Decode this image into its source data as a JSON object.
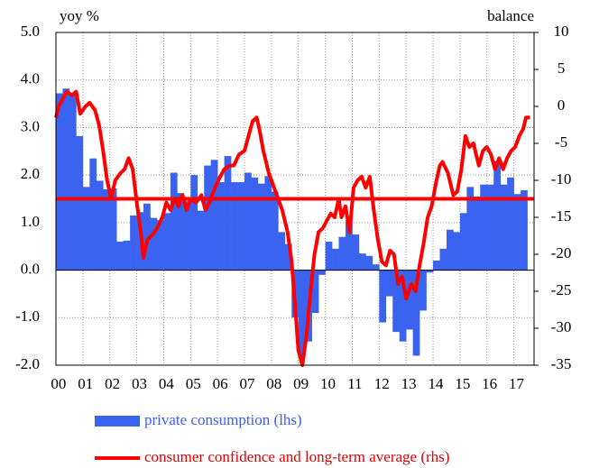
{
  "chart_data": {
    "type": "bar-line",
    "y_label": "yoy %",
    "y2_label": "balance",
    "xlim": [
      2000,
      2017.75
    ],
    "xticks": [
      {
        "value": 2000,
        "label": "00"
      },
      {
        "value": 2001,
        "label": "01"
      },
      {
        "value": 2002,
        "label": "02"
      },
      {
        "value": 2003,
        "label": "03"
      },
      {
        "value": 2004,
        "label": "04"
      },
      {
        "value": 2005,
        "label": "05"
      },
      {
        "value": 2006,
        "label": "06"
      },
      {
        "value": 2007,
        "label": "07"
      },
      {
        "value": 2008,
        "label": "08"
      },
      {
        "value": 2009,
        "label": "09"
      },
      {
        "value": 2010,
        "label": "10"
      },
      {
        "value": 2011,
        "label": "11"
      },
      {
        "value": 2012,
        "label": "12"
      },
      {
        "value": 2013,
        "label": "13"
      },
      {
        "value": 2014,
        "label": "14"
      },
      {
        "value": 2015,
        "label": "15"
      },
      {
        "value": 2016,
        "label": "16"
      },
      {
        "value": 2017,
        "label": "17"
      }
    ],
    "ylim": [
      -2,
      5
    ],
    "yticks": [
      {
        "value": -2,
        "label": "-2.0"
      },
      {
        "value": -1,
        "label": "-1.0"
      },
      {
        "value": 0,
        "label": "0.0"
      },
      {
        "value": 1,
        "label": "1.0"
      },
      {
        "value": 2,
        "label": "2.0"
      },
      {
        "value": 3,
        "label": "3.0"
      },
      {
        "value": 4,
        "label": "4.0"
      },
      {
        "value": 5,
        "label": "5.0"
      }
    ],
    "y2lim": [
      -35,
      10
    ],
    "y2ticks": [
      -35,
      -30,
      -25,
      -20,
      -15,
      -10,
      -5,
      0,
      5,
      10
    ],
    "grid": true,
    "series": [
      {
        "name": "private consumption (lhs)",
        "type": "bar",
        "color": "#3a63f0",
        "width": 0.25,
        "x": [
          2000,
          2000.25,
          2000.5,
          2000.75,
          2001,
          2001.25,
          2001.5,
          2001.75,
          2002,
          2002.25,
          2002.5,
          2002.75,
          2003,
          2003.25,
          2003.5,
          2003.75,
          2004,
          2004.25,
          2004.5,
          2004.75,
          2005,
          2005.25,
          2005.5,
          2005.75,
          2006,
          2006.25,
          2006.5,
          2006.75,
          2007,
          2007.25,
          2007.5,
          2007.75,
          2008,
          2008.25,
          2008.5,
          2008.75,
          2009,
          2009.25,
          2009.5,
          2009.75,
          2010,
          2010.25,
          2010.5,
          2010.75,
          2011,
          2011.25,
          2011.5,
          2011.75,
          2012,
          2012.25,
          2012.5,
          2012.75,
          2013,
          2013.25,
          2013.5,
          2013.75,
          2014,
          2014.25,
          2014.5,
          2014.75,
          2015,
          2015.25,
          2015.5,
          2015.75,
          2016,
          2016.25,
          2016.5,
          2016.75,
          2017,
          2017.25
        ],
        "values": [
          3.72,
          3.82,
          3.7,
          2.82,
          1.75,
          2.35,
          1.88,
          1.7,
          1.72,
          0.6,
          0.62,
          1.15,
          1.22,
          1.4,
          1.1,
          1.05,
          1.2,
          2.05,
          1.62,
          1.45,
          2.0,
          1.25,
          2.2,
          2.32,
          1.85,
          2.4,
          1.85,
          1.85,
          2.05,
          1.95,
          1.82,
          1.98,
          1.65,
          0.8,
          0.55,
          -1.0,
          -1.85,
          -1.5,
          -0.9,
          -0.1,
          0.6,
          0.45,
          0.7,
          1.05,
          0.75,
          0.35,
          0.3,
          0.12,
          -1.1,
          -0.55,
          -1.3,
          -1.5,
          -1.25,
          -1.8,
          -0.85,
          -0.05,
          0.2,
          0.45,
          0.85,
          0.8,
          1.2,
          1.75,
          1.55,
          1.8,
          1.8,
          2.3,
          1.8,
          1.95,
          1.6,
          1.68
        ]
      },
      {
        "name": "consumer confidence and long-term average (rhs)",
        "type": "line",
        "axis": "y2",
        "color": "#ff0000",
        "average": -12.5,
        "x": [
          2000.0,
          2000.1,
          2000.25,
          2000.4,
          2000.6,
          2000.75,
          2000.9,
          2001.1,
          2001.25,
          2001.45,
          2001.6,
          2001.75,
          2001.9,
          2002.05,
          2002.2,
          2002.4,
          2002.55,
          2002.7,
          2002.85,
          2003.0,
          2003.15,
          2003.25,
          2003.4,
          2003.55,
          2003.75,
          2003.95,
          2004.1,
          2004.25,
          2004.4,
          2004.55,
          2004.7,
          2004.85,
          2005.0,
          2005.2,
          2005.4,
          2005.55,
          2005.7,
          2005.9,
          2006.1,
          2006.25,
          2006.45,
          2006.6,
          2006.8,
          2007.0,
          2007.15,
          2007.3,
          2007.45,
          2007.55,
          2007.7,
          2007.9,
          2008.05,
          2008.2,
          2008.4,
          2008.6,
          2008.75,
          2008.9,
          2009.0,
          2009.15,
          2009.3,
          2009.45,
          2009.6,
          2009.75,
          2009.9,
          2010.05,
          2010.2,
          2010.35,
          2010.5,
          2010.6,
          2010.75,
          2010.9,
          2011.05,
          2011.2,
          2011.35,
          2011.5,
          2011.65,
          2011.8,
          2011.95,
          2012.1,
          2012.25,
          2012.4,
          2012.55,
          2012.7,
          2012.85,
          2013.0,
          2013.2,
          2013.35,
          2013.5,
          2013.65,
          2013.8,
          2013.95,
          2014.1,
          2014.25,
          2014.35,
          2014.55,
          2014.75,
          2014.9,
          2015.05,
          2015.2,
          2015.35,
          2015.5,
          2015.7,
          2015.85,
          2016.0,
          2016.15,
          2016.3,
          2016.45,
          2016.6,
          2016.75,
          2016.9,
          2017.05,
          2017.2,
          2017.35,
          2017.45,
          2017.6
        ],
        "values": [
          -1.5,
          0,
          1,
          2,
          1.5,
          2,
          -1,
          0,
          0.5,
          -0.5,
          -2.5,
          -6,
          -10,
          -12.5,
          -10,
          -9,
          -8.5,
          -7,
          -8.5,
          -13,
          -17,
          -20.5,
          -18,
          -17.5,
          -16.5,
          -15,
          -13,
          -14,
          -12.5,
          -13.5,
          -12,
          -14,
          -12.5,
          -13,
          -12,
          -14,
          -13,
          -11,
          -9.5,
          -8.5,
          -8,
          -8,
          -6.5,
          -6,
          -4,
          -2,
          -1.5,
          -3,
          -6,
          -9,
          -10.5,
          -12,
          -14,
          -17,
          -21,
          -28,
          -33,
          -35,
          -31,
          -25,
          -20,
          -17,
          -16.5,
          -15.5,
          -14.5,
          -15,
          -12.5,
          -15,
          -13.5,
          -17,
          -11,
          -10,
          -9.5,
          -11,
          -9.5,
          -14,
          -18,
          -21,
          -21.5,
          -19.5,
          -20,
          -24,
          -23,
          -26,
          -24,
          -25,
          -21.5,
          -18.5,
          -15,
          -13.5,
          -10.5,
          -8,
          -7.5,
          -9,
          -12,
          -11.5,
          -8.5,
          -4,
          -5.5,
          -5,
          -8,
          -6,
          -5.5,
          -6.5,
          -8.5,
          -7,
          -8.5,
          -7,
          -6,
          -5.5,
          -4,
          -3,
          -1.5,
          -1.5
        ]
      }
    ]
  }
}
